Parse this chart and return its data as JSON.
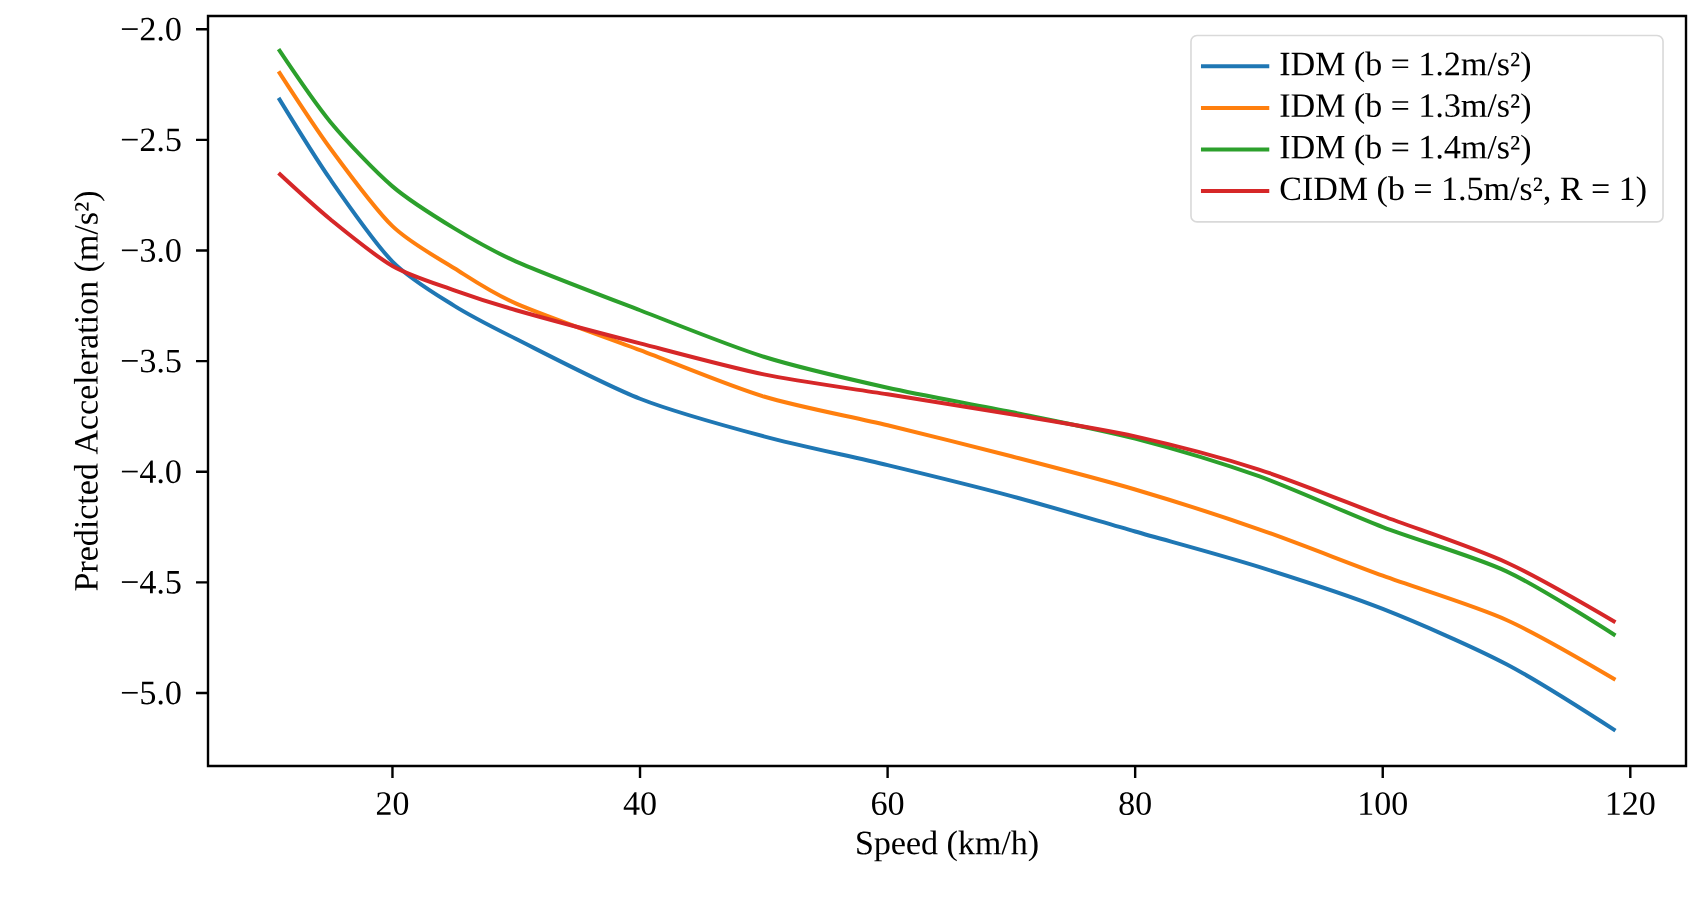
{
  "chart_data": {
    "type": "line",
    "xlabel": "Speed (km/h)",
    "ylabel": "Predicted Acceleration (m/s²)",
    "x": [
      10.8,
      15,
      20,
      25,
      30,
      40,
      50,
      60,
      70,
      80,
      90,
      100,
      110,
      118.8
    ],
    "series": [
      {
        "name": "IDM (b = 1.2m/s²)",
        "color": "#1f77b4",
        "values": [
          -2.31,
          -2.68,
          -3.05,
          -3.25,
          -3.4,
          -3.67,
          -3.84,
          -3.97,
          -4.11,
          -4.27,
          -4.43,
          -4.62,
          -4.87,
          -5.17
        ]
      },
      {
        "name": "IDM (b = 1.3m/s²)",
        "color": "#ff7f0e",
        "values": [
          -2.19,
          -2.54,
          -2.89,
          -3.08,
          -3.24,
          -3.45,
          -3.66,
          -3.79,
          -3.93,
          -4.08,
          -4.26,
          -4.47,
          -4.67,
          -4.94
        ]
      },
      {
        "name": "IDM (b = 1.4m/s²)",
        "color": "#2ca02c",
        "values": [
          -2.09,
          -2.42,
          -2.71,
          -2.9,
          -3.05,
          -3.27,
          -3.48,
          -3.62,
          -3.73,
          -3.85,
          -4.02,
          -4.25,
          -4.45,
          -4.74
        ]
      },
      {
        "name": "CIDM (b = 1.5m/s², R = 1)",
        "color": "#d62728",
        "values": [
          -2.65,
          -2.86,
          -3.07,
          -3.18,
          -3.27,
          -3.42,
          -3.56,
          -3.65,
          -3.74,
          -3.84,
          -3.99,
          -4.2,
          -4.41,
          -4.68
        ]
      }
    ],
    "xlim": [
      5.1,
      124.5
    ],
    "ylim": [
      -5.33,
      -1.94
    ],
    "xticks": [
      20,
      40,
      60,
      80,
      100,
      120
    ],
    "yticks": [
      {
        "value": -2.0,
        "label": "−2.0"
      },
      {
        "value": -2.5,
        "label": "−2.5"
      },
      {
        "value": -3.0,
        "label": "−3.0"
      },
      {
        "value": -3.5,
        "label": "−3.5"
      },
      {
        "value": -4.0,
        "label": "−4.0"
      },
      {
        "value": -4.5,
        "label": "−4.5"
      },
      {
        "value": -5.0,
        "label": "−5.0"
      }
    ],
    "legend": "top right",
    "grid": false,
    "marker": "none",
    "line_style": "solid"
  }
}
